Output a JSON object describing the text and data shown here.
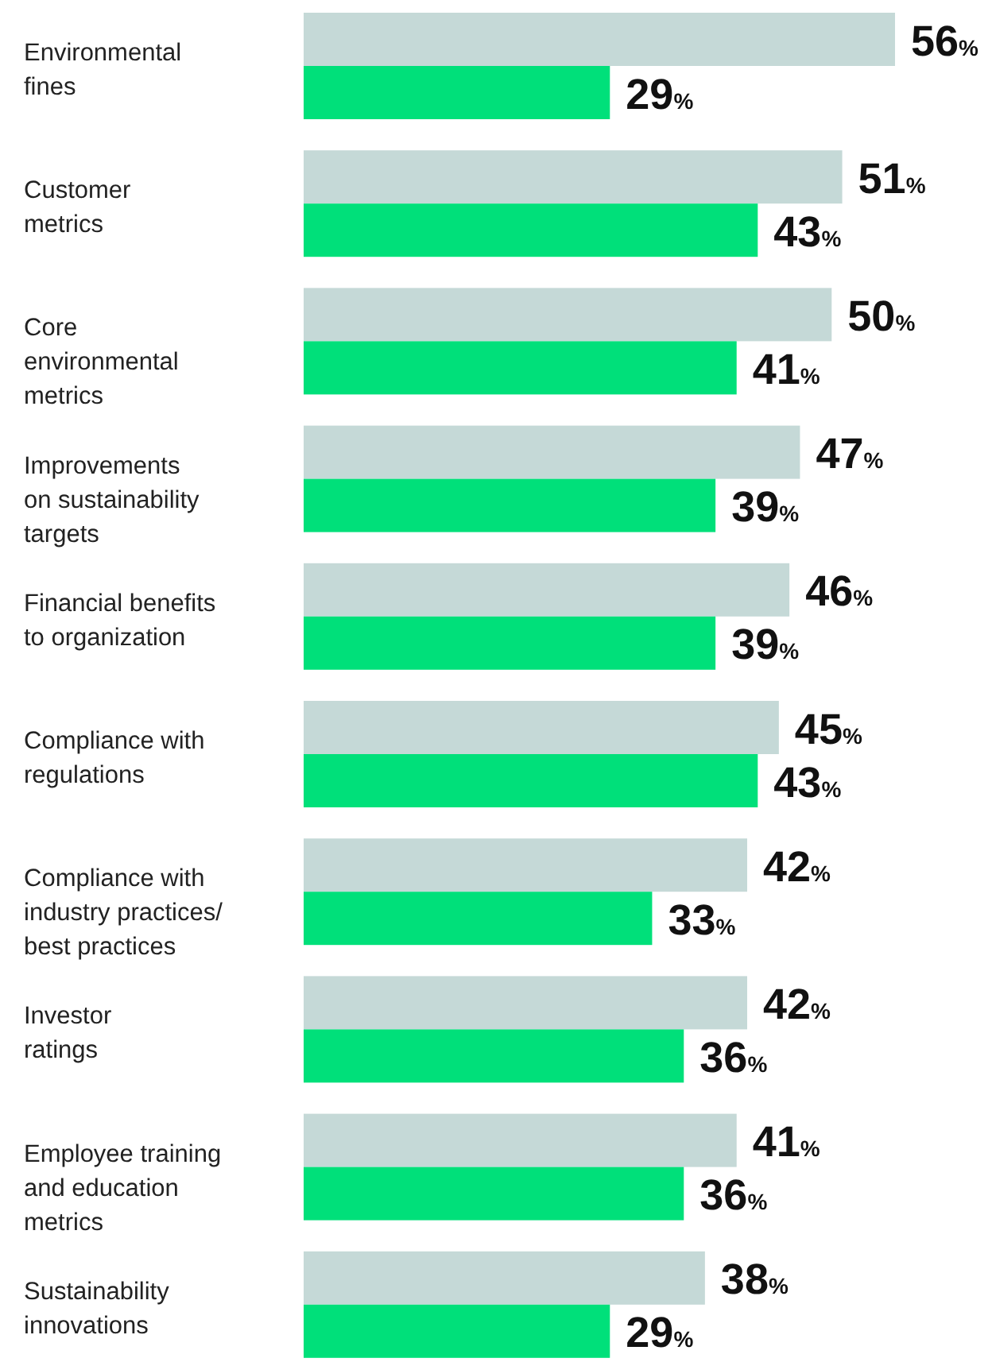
{
  "chart_data": {
    "type": "bar",
    "orientation": "horizontal",
    "categories": [
      "Environmental\nfines",
      "Customer\nmetrics",
      "Core\nenvironmental\nmetrics",
      "Improvements\non sustainability\ntargets",
      "Financial benefits\nto organization",
      "Compliance with\nregulations",
      "Compliance with\nindustry practices/\nbest practices",
      "Investor\nratings",
      "Employee training\nand education\nmetrics",
      "Sustainability\ninnovations"
    ],
    "series": [
      {
        "color": "#c5d9d7",
        "values": [
          56,
          51,
          50,
          47,
          46,
          45,
          42,
          42,
          41,
          38
        ],
        "value_labels": [
          "56%",
          "51%",
          "50%",
          "47%",
          "46%",
          "45%",
          "42%",
          "42%",
          "41%",
          "38%"
        ]
      },
      {
        "color": "#00e07a",
        "values": [
          29,
          43,
          41,
          39,
          39,
          43,
          33,
          36,
          36,
          29
        ],
        "value_labels": [
          "29%",
          "43%",
          "41%",
          "39%",
          "39%",
          "43%",
          "33%",
          "36%",
          "36%",
          "29%"
        ]
      }
    ],
    "tick_labels": "y"
  }
}
